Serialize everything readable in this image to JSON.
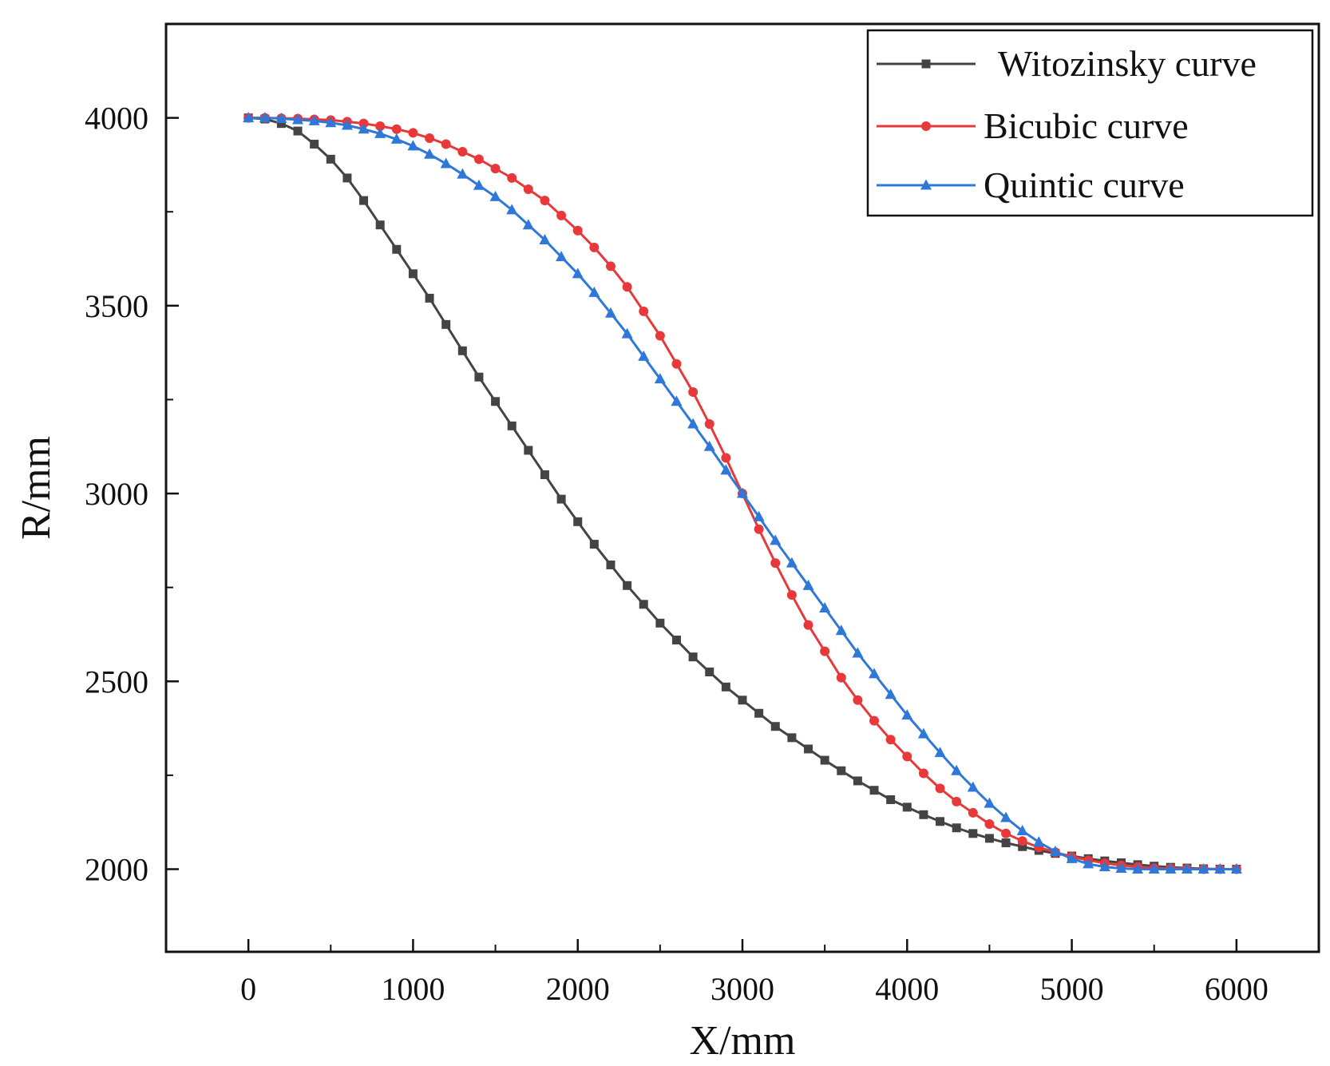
{
  "chart_data": {
    "type": "line",
    "title": "",
    "xlabel": "X/mm",
    "ylabel": "R/mm",
    "xlim": [
      -500,
      6500
    ],
    "ylim": [
      1780,
      4250
    ],
    "xticks": [
      0,
      1000,
      2000,
      3000,
      4000,
      5000,
      6000
    ],
    "yticks": [
      2000,
      2500,
      3000,
      3500,
      4000
    ],
    "x_minor_step": 500,
    "y_minor_step": 250,
    "grid": false,
    "legend_position": "top-right",
    "series": [
      {
        "name": "Witozinsky curve",
        "color": "#444444",
        "marker": "square",
        "x": [
          0,
          100,
          200,
          300,
          400,
          500,
          600,
          700,
          800,
          900,
          1000,
          1100,
          1200,
          1300,
          1400,
          1500,
          1600,
          1700,
          1800,
          1900,
          2000,
          2100,
          2200,
          2300,
          2400,
          2500,
          2600,
          2700,
          2800,
          2900,
          3000,
          3100,
          3200,
          3300,
          3400,
          3500,
          3600,
          3700,
          3800,
          3900,
          4000,
          4100,
          4200,
          4300,
          4400,
          4500,
          4600,
          4700,
          4800,
          4900,
          5000,
          5100,
          5200,
          5300,
          5400,
          5500,
          5600,
          5700,
          5800,
          5900,
          6000
        ],
        "y": [
          4000,
          3997,
          3985,
          3965,
          3930,
          3890,
          3840,
          3780,
          3715,
          3650,
          3585,
          3520,
          3450,
          3380,
          3310,
          3245,
          3180,
          3115,
          3050,
          2985,
          2925,
          2865,
          2810,
          2755,
          2705,
          2655,
          2610,
          2565,
          2525,
          2485,
          2450,
          2415,
          2380,
          2350,
          2320,
          2290,
          2262,
          2235,
          2210,
          2185,
          2165,
          2145,
          2127,
          2110,
          2095,
          2082,
          2070,
          2060,
          2050,
          2042,
          2035,
          2028,
          2022,
          2017,
          2012,
          2008,
          2005,
          2003,
          2001,
          2000,
          2000
        ]
      },
      {
        "name": "Bicubic curve",
        "color": "#e8393a",
        "marker": "circle",
        "x": [
          0,
          100,
          200,
          300,
          400,
          500,
          600,
          700,
          800,
          900,
          1000,
          1100,
          1200,
          1300,
          1400,
          1500,
          1600,
          1700,
          1800,
          1900,
          2000,
          2100,
          2200,
          2300,
          2400,
          2500,
          2600,
          2700,
          2800,
          2900,
          3000,
          3100,
          3200,
          3300,
          3400,
          3500,
          3600,
          3700,
          3800,
          3900,
          4000,
          4100,
          4200,
          4300,
          4400,
          4500,
          4600,
          4700,
          4800,
          4900,
          5000,
          5100,
          5200,
          5300,
          5400,
          5500,
          5600,
          5700,
          5800,
          5900,
          6000
        ],
        "y": [
          4000,
          4000,
          3999,
          3998,
          3996,
          3994,
          3990,
          3985,
          3978,
          3970,
          3960,
          3946,
          3930,
          3910,
          3890,
          3865,
          3840,
          3810,
          3780,
          3740,
          3700,
          3655,
          3605,
          3550,
          3485,
          3420,
          3345,
          3270,
          3185,
          3095,
          3000,
          2905,
          2815,
          2730,
          2650,
          2580,
          2510,
          2450,
          2395,
          2345,
          2300,
          2255,
          2215,
          2180,
          2150,
          2120,
          2095,
          2075,
          2058,
          2045,
          2033,
          2024,
          2016,
          2010,
          2006,
          2003,
          2002,
          2001,
          2000,
          2000,
          2000
        ]
      },
      {
        "name": "Quintic curve",
        "color": "#2f78d8",
        "marker": "triangle",
        "x": [
          0,
          100,
          200,
          300,
          400,
          500,
          600,
          700,
          800,
          900,
          1000,
          1100,
          1200,
          1300,
          1400,
          1500,
          1600,
          1700,
          1800,
          1900,
          2000,
          2100,
          2200,
          2300,
          2400,
          2500,
          2600,
          2700,
          2800,
          2900,
          3000,
          3100,
          3200,
          3300,
          3400,
          3500,
          3600,
          3700,
          3800,
          3900,
          4000,
          4100,
          4200,
          4300,
          4400,
          4500,
          4600,
          4700,
          4800,
          4900,
          5000,
          5100,
          5200,
          5300,
          5400,
          5500,
          5600,
          5700,
          5800,
          5900,
          6000
        ],
        "y": [
          4000,
          4000,
          3998,
          3995,
          3992,
          3987,
          3980,
          3970,
          3958,
          3943,
          3925,
          3903,
          3878,
          3850,
          3820,
          3790,
          3755,
          3715,
          3675,
          3630,
          3585,
          3535,
          3480,
          3425,
          3365,
          3305,
          3245,
          3185,
          3125,
          3062,
          3000,
          2938,
          2875,
          2815,
          2755,
          2695,
          2635,
          2575,
          2520,
          2465,
          2410,
          2360,
          2310,
          2262,
          2218,
          2175,
          2137,
          2102,
          2072,
          2047,
          2028,
          2014,
          2006,
          2002,
          2000,
          2000,
          2000,
          2000,
          2000,
          2000,
          2000
        ]
      }
    ]
  }
}
